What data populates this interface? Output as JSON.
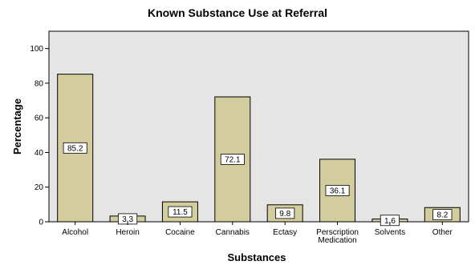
{
  "chart_data": {
    "type": "bar",
    "title": "Known Substance Use at Referral",
    "xlabel": "Substances",
    "ylabel": "Percentage",
    "categories": [
      [
        "Alcohol"
      ],
      [
        "Heroin"
      ],
      [
        "Cocaine"
      ],
      [
        "Cannabis"
      ],
      [
        "Ectasy"
      ],
      [
        "Perscription",
        "Medication"
      ],
      [
        "Solvents"
      ],
      [
        "Other"
      ]
    ],
    "values": [
      85.2,
      3.3,
      11.5,
      72.1,
      9.8,
      36.1,
      1.6,
      8.2
    ],
    "ylim": [
      0,
      110
    ],
    "yticks": [
      0,
      20,
      40,
      60,
      80,
      100
    ],
    "grid": false,
    "colors": {
      "plot_bg": "#e5e5e5",
      "bar_fill": "#d3cd9d",
      "bar_stroke": "#000000",
      "label_bg": "#ffffff"
    }
  }
}
